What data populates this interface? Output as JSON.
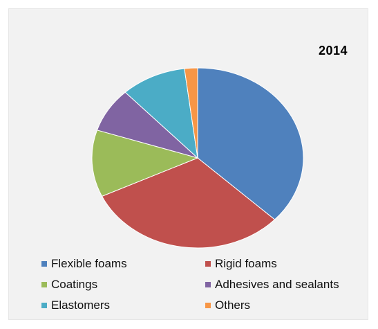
{
  "chart_data": {
    "type": "pie",
    "title": "2014",
    "categories": [
      "Flexible foams",
      "Rigid foams",
      "Coatings",
      "Adhesives and sealants",
      "Elastomers",
      "Others"
    ],
    "values": [
      37,
      31,
      12,
      8,
      10,
      2
    ],
    "colors": [
      "#4f81bd",
      "#c0504d",
      "#9bbb59",
      "#8064a2",
      "#4bacc6",
      "#f79646"
    ],
    "start_angle_deg": 0,
    "direction": "clockwise",
    "legend_position": "bottom"
  }
}
